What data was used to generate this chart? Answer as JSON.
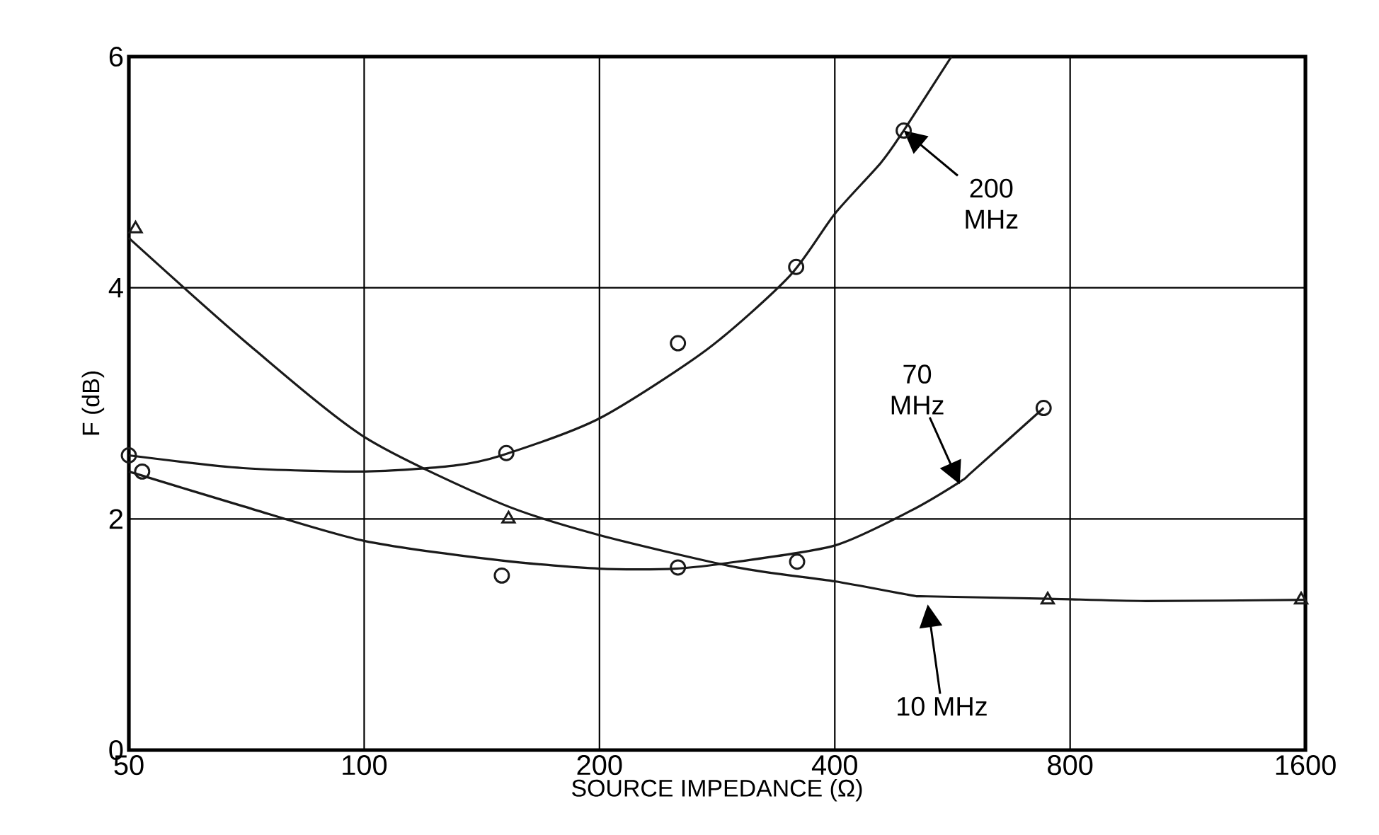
{
  "chart_data": {
    "type": "scatter",
    "xlabel": "SOURCE IMPEDANCE (Ω)",
    "ylabel": "F (dB)",
    "log": "x",
    "grid": true,
    "xlim": [
      50,
      1600
    ],
    "ylim": [
      0,
      6
    ],
    "xticks": [
      50,
      100,
      200,
      400,
      800,
      1600
    ],
    "yticks": [
      0,
      2,
      4,
      6
    ],
    "series": [
      {
        "type": "line",
        "color": "#1a1a1a",
        "marker": "none",
        "line_style": "solid",
        "x": [
          50,
          70,
          100,
          130,
          150,
          200,
          275,
          350,
          400,
          458,
          490,
          564
        ],
        "values": [
          2.55,
          2.44,
          2.41,
          2.46,
          2.55,
          2.87,
          3.47,
          4.1,
          4.64,
          5.08,
          5.36,
          6.0
        ]
      },
      {
        "color": "#1a1a1a",
        "marker": "circle",
        "x": [
          50,
          152,
          252,
          357,
          490
        ],
        "values": [
          2.55,
          2.57,
          3.52,
          4.18,
          5.36
        ]
      },
      {
        "type": "line",
        "color": "#1a1a1a",
        "marker": "none",
        "line_style": "solid",
        "x": [
          50,
          70,
          100,
          150,
          200,
          250,
          300,
          400,
          500,
          578,
          600,
          740
        ],
        "values": [
          2.41,
          2.11,
          1.81,
          1.64,
          1.57,
          1.57,
          1.63,
          1.77,
          2.07,
          2.32,
          2.41,
          2.96
        ]
      },
      {
        "color": "#1a1a1a",
        "marker": "circle",
        "x": [
          52,
          150,
          252,
          358,
          740
        ],
        "values": [
          2.41,
          1.51,
          1.58,
          1.63,
          2.96
        ]
      },
      {
        "type": "line",
        "color": "#1a1a1a",
        "marker": "none",
        "line_style": "solid",
        "x": [
          50,
          70,
          100,
          150,
          200,
          300,
          400,
          500,
          525,
          750,
          1000,
          1600
        ],
        "values": [
          4.43,
          3.55,
          2.71,
          2.13,
          1.86,
          1.58,
          1.46,
          1.34,
          1.33,
          1.31,
          1.29,
          1.3
        ]
      },
      {
        "color": "#1a1a1a",
        "marker": "triangle",
        "x": [
          51,
          153,
          749,
          1580
        ],
        "values": [
          4.51,
          2.0,
          1.3,
          1.3
        ]
      }
    ],
    "annotations": [
      {
        "text": "200 MHz",
        "x": 490,
        "y": 5.36
      },
      {
        "text": "70 MHz",
        "x": 578,
        "y": 2.3
      },
      "10 MHz"
    ]
  }
}
